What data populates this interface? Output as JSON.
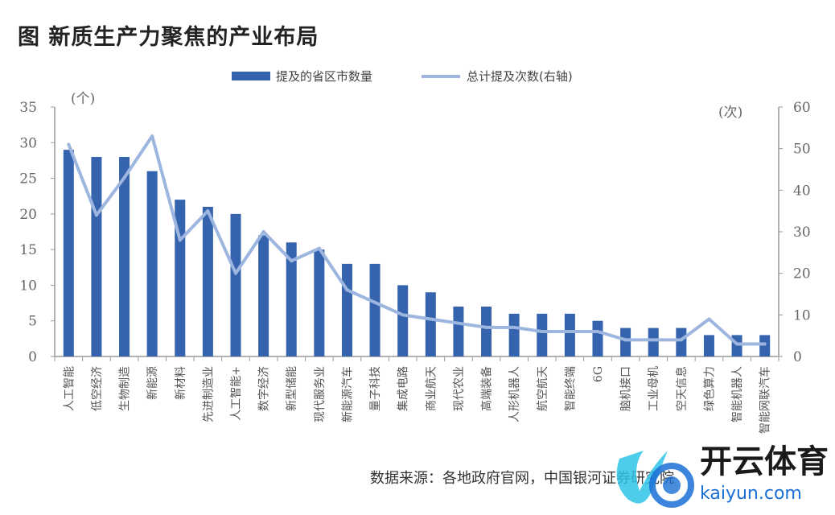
{
  "title": "图  新质生产力聚焦的产业布局",
  "source": "数据来源：各地政府官网，中国银河证券研究院",
  "watermark": {
    "text": "开云体育",
    "url": "kaiyun.com"
  },
  "colors": {
    "bar": "#3563ad",
    "line": "#9db6e0",
    "axis": "#999999"
  },
  "chart_data": {
    "type": "bar+line",
    "left_axis": {
      "unit_label": "(个)",
      "ylim": [
        0,
        35
      ],
      "ticks": [
        "0",
        "5",
        "10",
        "15",
        "20",
        "25",
        "30",
        "35"
      ]
    },
    "right_axis": {
      "unit_label": "(次)",
      "ylim": [
        0,
        60
      ],
      "ticks": [
        "0",
        "10",
        "20",
        "30",
        "40",
        "50",
        "60"
      ]
    },
    "legend_position": "top",
    "grid": false,
    "categories": [
      "人工智能",
      "低空经济",
      "生物制造",
      "新能源",
      "新材料",
      "先进制造业",
      "人工智能+",
      "数字经济",
      "新型储能",
      "现代服务业",
      "新能源汽车",
      "量子科技",
      "集成电路",
      "商业航天",
      "现代农业",
      "高端装备",
      "人形机器人",
      "航空航天",
      "智能终端",
      "6G",
      "脑机接口",
      "工业母机",
      "空天信息",
      "绿色算力",
      "智能机器人",
      "智能网联汽车"
    ],
    "series": [
      {
        "name": "提及的省区市数量",
        "type": "bar",
        "axis": "left",
        "values": [
          29,
          28,
          28,
          26,
          22,
          21,
          20,
          17,
          16,
          15,
          13,
          13,
          10,
          9,
          7,
          7,
          6,
          6,
          6,
          5,
          4,
          4,
          4,
          3,
          3,
          3
        ]
      },
      {
        "name": "总计提及次数(右轴)",
        "type": "line",
        "axis": "right",
        "values": [
          51,
          34,
          43,
          53,
          28,
          35,
          20,
          30,
          23,
          26,
          16,
          13,
          10,
          9,
          8,
          7,
          7,
          6,
          6,
          6,
          4,
          4,
          4,
          9,
          3,
          3
        ]
      }
    ]
  }
}
